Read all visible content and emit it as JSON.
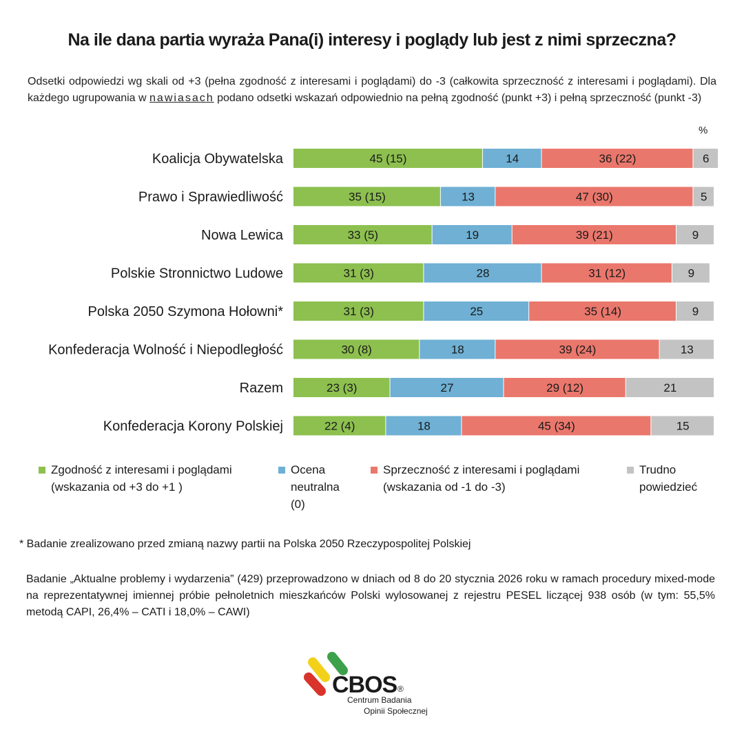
{
  "title": "Na ile dana partia wyraża Pana(i) interesy i poglądy lub jest z nimi sprzeczna?",
  "subtitle": {
    "part1": "Odsetki odpowiedzi wg skali od +3 (pełna zgodność z interesami i poglądami) do -3 (całkowita sprzeczność z interesami i poglądami). Dla każdego ugrupowania w ",
    "emph": "nawiasach",
    "part2": " podano odsetki wskazań odpowiednio na pełną zgodność (punkt +3) i pełną sprzeczność (punkt -3)"
  },
  "unit_label": "%",
  "chart_data": {
    "type": "bar",
    "orientation": "horizontal",
    "stacked": true,
    "xlim": [
      0,
      100
    ],
    "grid": false,
    "legend_position": "bottom",
    "categories": [
      "Koalicja Obywatelska",
      "Prawo i Sprawiedliwość",
      "Nowa Lewica",
      "Polskie Stronnictwo Ludowe",
      "Polska 2050 Szymona Hołowni*",
      "Konfederacja Wolność i Niepodległość",
      "Razem",
      "Konfederacja Korony Polskiej"
    ],
    "series": [
      {
        "name": "Zgodność z interesami i poglądami (wskazania od +3 do +1 )",
        "color": "#8dc04f",
        "values": [
          45,
          35,
          33,
          31,
          31,
          30,
          23,
          22
        ],
        "labels": [
          "45 (15)",
          "35 (15)",
          "33 (5)",
          "31 (3)",
          "31 (3)",
          "30 (8)",
          "23 (3)",
          "22 (4)"
        ]
      },
      {
        "name": "Ocena neutralna (0)",
        "color": "#6fb0d4",
        "values": [
          14,
          13,
          19,
          28,
          25,
          18,
          27,
          18
        ],
        "labels": [
          "14",
          "13",
          "19",
          "28",
          "25",
          "18",
          "27",
          "18"
        ]
      },
      {
        "name": "Sprzeczność z interesami i poglądami (wskazania od -1 do -3)",
        "color": "#ea776c",
        "values": [
          36,
          47,
          39,
          31,
          35,
          39,
          29,
          45
        ],
        "labels": [
          "36 (22)",
          "47 (30)",
          "39 (21)",
          "31 (12)",
          "35 (14)",
          "39 (24)",
          "29 (12)",
          "45 (34)"
        ]
      },
      {
        "name": "Trudno powiedzieć",
        "color": "#c3c3c3",
        "values": [
          6,
          5,
          9,
          9,
          9,
          13,
          21,
          15
        ],
        "labels": [
          "6",
          "5",
          "9",
          "9",
          "9",
          "13",
          "21",
          "15"
        ]
      }
    ]
  },
  "legend": {
    "green": {
      "line1": "Zgodność z interesami i poglądami",
      "line2": "(wskazania od +3 do +1 )"
    },
    "blue": {
      "line1": "Ocena",
      "line2": "neutralna",
      "line3": "(0)"
    },
    "red": {
      "line1": "Sprzeczność z interesami i poglądami",
      "line2": "(wskazania od -1 do -3)"
    },
    "gray": {
      "line1": "Trudno",
      "line2": "powiedzieć"
    }
  },
  "footnote": "* Badanie zrealizowano przed zmianą nazwy partii na Polska 2050 Rzeczypospolitej Polskiej",
  "methodology": "Badanie „Aktualne problemy i wydarzenia” (429) przeprowadzono w dniach od 8 do 20 stycznia 2026 roku w ramach procedury mixed-mode na reprezentatywnej imiennej próbie pełnoletnich mieszkańców Polski wylosowanej z rejestru PESEL liczącej 938 osób (w tym: 55,5% metodą CAPI, 26,4% – CATI i 18,0% – CAWI)",
  "logo": {
    "wordmark": "CBOS",
    "registered": "®",
    "line1": "Centrum Badania",
    "line2": "Opinii Społecznej"
  }
}
